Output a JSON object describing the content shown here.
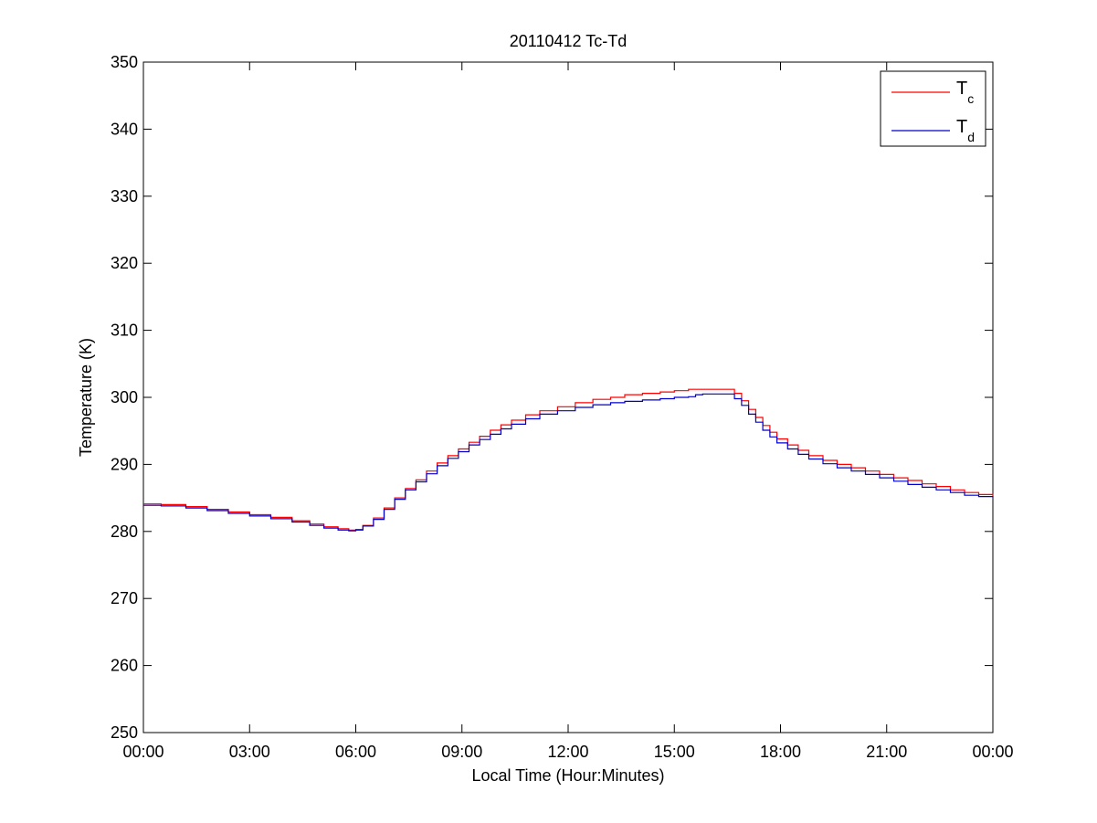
{
  "chart_data": {
    "type": "line",
    "title": "20110412 Tc-Td",
    "xlabel": "Local Time (Hour:Minutes)",
    "ylabel": "Temperature (K)",
    "xlim": [
      0,
      24
    ],
    "ylim": [
      250,
      350
    ],
    "x_ticks": [
      0,
      3,
      6,
      9,
      12,
      15,
      18,
      21,
      24
    ],
    "x_tick_labels": [
      "00:00",
      "03:00",
      "06:00",
      "09:00",
      "12:00",
      "15:00",
      "18:00",
      "21:00",
      "00:00"
    ],
    "y_ticks": [
      250,
      260,
      270,
      280,
      290,
      300,
      310,
      320,
      330,
      340,
      350
    ],
    "y_tick_labels": [
      "250",
      "260",
      "270",
      "280",
      "290",
      "300",
      "310",
      "320",
      "330",
      "340",
      "350"
    ],
    "grid": false,
    "legend_position": "top-right",
    "legend": [
      {
        "label": "T",
        "subscript": "c"
      },
      {
        "label": "T",
        "subscript": "d"
      }
    ],
    "series": [
      {
        "key": "Tc",
        "color": "#ff0000",
        "x": [
          0,
          0.5,
          1.2,
          1.8,
          2.4,
          3.0,
          3.6,
          4.2,
          4.7,
          5.1,
          5.5,
          5.8,
          6.0,
          6.2,
          6.5,
          6.8,
          7.1,
          7.4,
          7.7,
          8.0,
          8.3,
          8.6,
          8.9,
          9.2,
          9.5,
          9.8,
          10.1,
          10.4,
          10.8,
          11.2,
          11.7,
          12.2,
          12.7,
          13.2,
          13.6,
          14.1,
          14.6,
          15.0,
          15.4,
          15.8,
          16.1,
          16.5,
          16.7,
          16.9,
          17.1,
          17.3,
          17.5,
          17.7,
          17.9,
          18.2,
          18.5,
          18.8,
          19.2,
          19.6,
          20.0,
          20.4,
          20.8,
          21.2,
          21.6,
          22.0,
          22.4,
          22.8,
          23.2,
          23.6,
          24.0
        ],
        "y": [
          284.1,
          284.0,
          283.7,
          283.3,
          282.9,
          282.5,
          282.1,
          281.6,
          281.1,
          280.7,
          280.4,
          280.2,
          280.3,
          280.9,
          282.0,
          283.5,
          285.0,
          286.4,
          287.7,
          289.0,
          290.2,
          291.3,
          292.3,
          293.3,
          294.2,
          295.1,
          295.9,
          296.6,
          297.4,
          298.0,
          298.6,
          299.2,
          299.7,
          300.0,
          300.4,
          300.6,
          300.8,
          301.0,
          301.2,
          301.2,
          301.2,
          301.2,
          300.6,
          299.5,
          298.2,
          297.0,
          295.8,
          294.8,
          293.8,
          292.9,
          292.1,
          291.3,
          290.6,
          290.0,
          289.5,
          289.0,
          288.5,
          288.0,
          287.6,
          287.1,
          286.7,
          286.2,
          285.8,
          285.5,
          285.3
        ]
      },
      {
        "key": "Td",
        "color": "#0000cc",
        "x": [
          0,
          0.5,
          1.2,
          1.8,
          2.4,
          3.0,
          3.6,
          4.2,
          4.7,
          5.1,
          5.5,
          5.8,
          6.0,
          6.2,
          6.5,
          6.8,
          7.1,
          7.4,
          7.7,
          8.0,
          8.3,
          8.6,
          8.9,
          9.2,
          9.5,
          9.8,
          10.1,
          10.4,
          10.8,
          11.2,
          11.7,
          12.2,
          12.7,
          13.2,
          13.6,
          14.1,
          14.6,
          15.0,
          15.4,
          15.6,
          15.8,
          16.1,
          16.5,
          16.7,
          16.9,
          17.1,
          17.3,
          17.5,
          17.7,
          17.9,
          18.2,
          18.5,
          18.8,
          19.2,
          19.6,
          20.0,
          20.4,
          20.8,
          21.2,
          21.6,
          22.0,
          22.4,
          22.8,
          23.2,
          23.6,
          24.0
        ],
        "y": [
          283.9,
          283.8,
          283.5,
          283.1,
          282.7,
          282.3,
          281.9,
          281.4,
          280.9,
          280.5,
          280.2,
          280.1,
          280.2,
          280.8,
          281.8,
          283.3,
          284.8,
          286.2,
          287.4,
          288.6,
          289.8,
          290.9,
          291.9,
          292.9,
          293.7,
          294.5,
          295.3,
          296.0,
          296.8,
          297.5,
          298.0,
          298.5,
          298.9,
          299.2,
          299.4,
          299.6,
          299.8,
          300.0,
          300.1,
          300.4,
          300.5,
          300.5,
          300.5,
          299.8,
          298.8,
          297.5,
          296.3,
          295.1,
          294.1,
          293.2,
          292.3,
          291.5,
          290.8,
          290.1,
          289.5,
          289.0,
          288.5,
          288.0,
          287.5,
          287.0,
          286.6,
          286.2,
          285.8,
          285.4,
          285.2,
          285.1
        ]
      }
    ]
  }
}
